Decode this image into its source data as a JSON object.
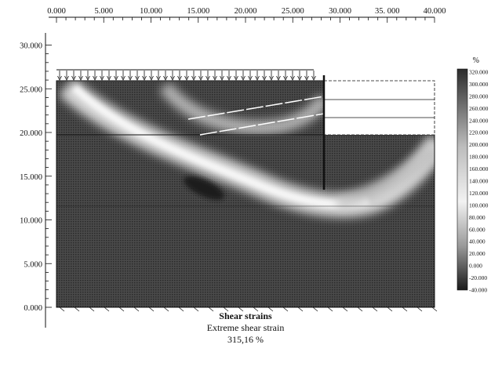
{
  "figure": {
    "x_ticks": [
      "0.000",
      "5.000",
      "10.000",
      "15.000",
      "20.000",
      "25.000",
      "30.000",
      "35. 000",
      "40.000"
    ],
    "y_ticks": [
      "30.000",
      "25.000",
      "20.000",
      "15.000",
      "10.000",
      "5.000",
      "0.000"
    ],
    "legend": {
      "unit": "%",
      "values": [
        "320.000",
        "300.000",
        "280.000",
        "260.000",
        "240.000",
        "220.000",
        "200.000",
        "180.000",
        "160.000",
        "140.000",
        "120.000",
        "100.000",
        "80.000",
        "60.000",
        "40.000",
        "20.000",
        "0.000",
        "-20.000",
        "-40.000"
      ]
    },
    "caption": {
      "title": "Shear strains",
      "subtitle": "Extreme shear strain",
      "value": "315,16 %"
    },
    "colors": {
      "background_field": "#3a3a3a",
      "band_light": "#e6e6e6",
      "boundary": "#111111"
    }
  }
}
